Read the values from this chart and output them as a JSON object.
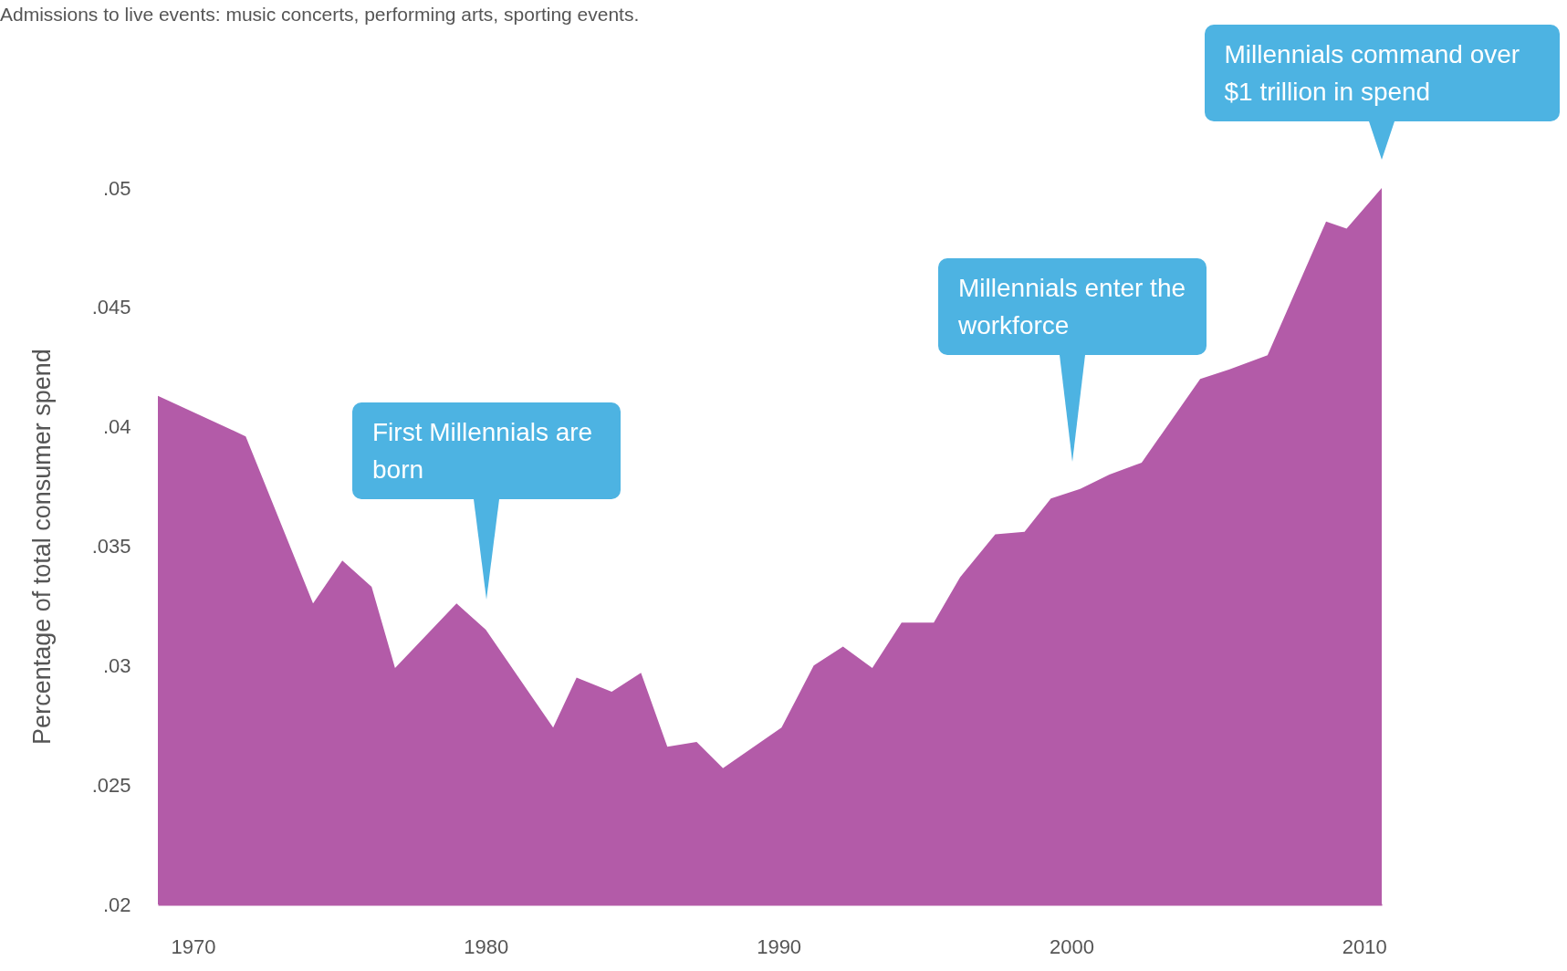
{
  "chart_data": {
    "type": "area",
    "title": "Admissions to live events: music concerts, performing arts, sporting events.",
    "ylabel": "Percentage of total consumer spend",
    "x": [
      1968.8,
      1971.8,
      1974.1,
      1975.1,
      1976.1,
      1976.9,
      1979.0,
      1980.0,
      1982.3,
      1983.1,
      1984.3,
      1985.3,
      1986.2,
      1987.2,
      1988.1,
      1990.1,
      1991.2,
      1992.2,
      1993.2,
      1994.2,
      1995.3,
      1996.2,
      1997.4,
      1998.4,
      1999.3,
      2000.3,
      2001.3,
      2002.4,
      2004.4,
      2005.4,
      2006.7,
      2008.7,
      2009.4,
      2010.6
    ],
    "series": [
      {
        "color": "#b35ba8",
        "values": [
          0.0413,
          0.0396,
          0.0326,
          0.0344,
          0.0333,
          0.0299,
          0.0326,
          0.0315,
          0.0274,
          0.0295,
          0.0289,
          0.0297,
          0.0266,
          0.0268,
          0.0257,
          0.0274,
          0.03,
          0.0308,
          0.0299,
          0.0318,
          0.0318,
          0.0337,
          0.0355,
          0.0356,
          0.037,
          0.0374,
          0.038,
          0.0385,
          0.042,
          0.0424,
          0.043,
          0.0486,
          0.0483,
          0.05
        ]
      }
    ],
    "xlim": [
      1968.8,
      2010.6
    ],
    "xticks": [
      1970,
      1980,
      1990,
      2000,
      2010
    ],
    "ylim": [
      0.02,
      0.05
    ],
    "yticks": [
      {
        "value": 0.02,
        "label": ".02"
      },
      {
        "value": 0.025,
        "label": ".025"
      },
      {
        "value": 0.03,
        "label": ".03"
      },
      {
        "value": 0.035,
        "label": ".035"
      },
      {
        "value": 0.04,
        "label": ".04"
      },
      {
        "value": 0.045,
        "label": ".045"
      },
      {
        "value": 0.05,
        "label": ".05"
      }
    ],
    "grid": false,
    "annotations": [
      "First Millennials are born",
      "Millennials enter the workforce",
      "Millennials command over $1 trillion in spend"
    ]
  }
}
